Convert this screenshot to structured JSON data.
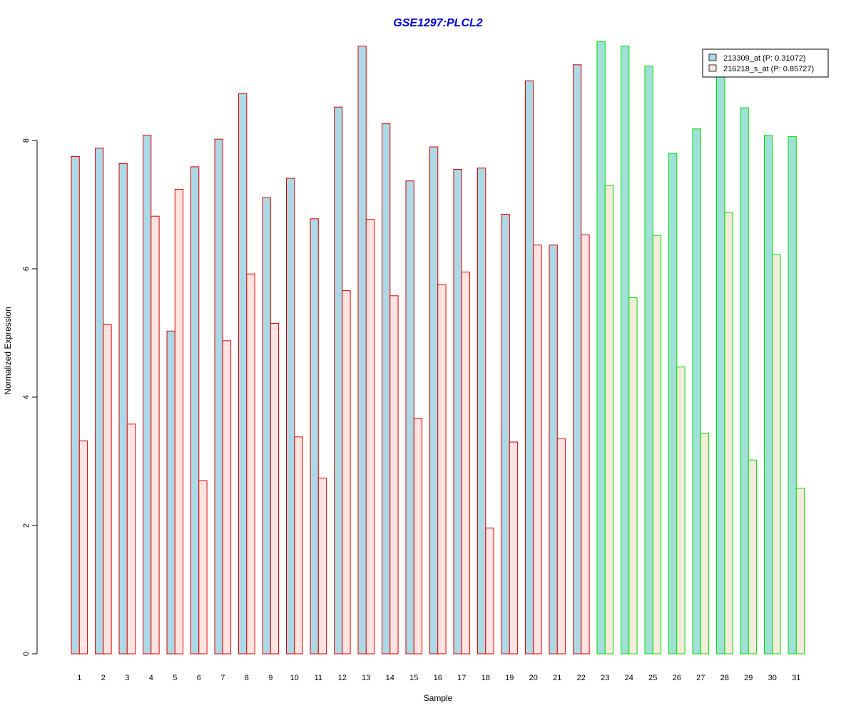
{
  "chart_data": {
    "type": "bar",
    "title": "GSE1297:PLCL2",
    "title_color": "#0000CC",
    "xlabel": "Sample",
    "ylabel": "Normalized Expression",
    "ylim": [
      0,
      9.6
    ],
    "yticks": [
      0,
      2,
      4,
      6,
      8
    ],
    "categories": [
      "1",
      "2",
      "3",
      "4",
      "5",
      "6",
      "7",
      "8",
      "9",
      "10",
      "11",
      "12",
      "13",
      "14",
      "15",
      "16",
      "17",
      "18",
      "19",
      "20",
      "21",
      "22",
      "23",
      "24",
      "25",
      "26",
      "27",
      "28",
      "29",
      "30",
      "31"
    ],
    "series": [
      {
        "name": "213309_at (P: 0.31072)",
        "values": [
          7.75,
          7.88,
          7.64,
          8.08,
          5.03,
          7.59,
          8.02,
          8.73,
          7.11,
          7.41,
          6.78,
          8.52,
          9.47,
          8.26,
          7.37,
          7.9,
          7.55,
          7.57,
          6.85,
          8.93,
          6.37,
          9.18,
          9.54,
          9.47,
          9.16,
          7.8,
          8.18,
          9.08,
          8.51,
          8.08,
          8.06
        ],
        "fill": "#ADD8E6",
        "fill_group2": "#A0E0D8"
      },
      {
        "name": "216218_s_at (P: 0.85727)",
        "values": [
          3.32,
          5.13,
          3.58,
          6.82,
          7.24,
          2.7,
          4.88,
          5.92,
          5.15,
          3.38,
          2.74,
          5.66,
          6.77,
          5.58,
          3.67,
          5.75,
          5.95,
          1.96,
          3.3,
          6.37,
          3.35,
          6.53,
          7.3,
          5.55,
          6.52,
          4.47,
          3.44,
          6.88,
          3.02,
          6.22,
          2.58
        ],
        "fill": "#FFE4E1",
        "fill_group2": "#F5EBDA"
      }
    ],
    "group_borders": {
      "group1_samples": 22,
      "group1_color": "#DD0000",
      "group2_color": "#00DD00"
    },
    "legend_position": "top-right",
    "grid": false
  }
}
